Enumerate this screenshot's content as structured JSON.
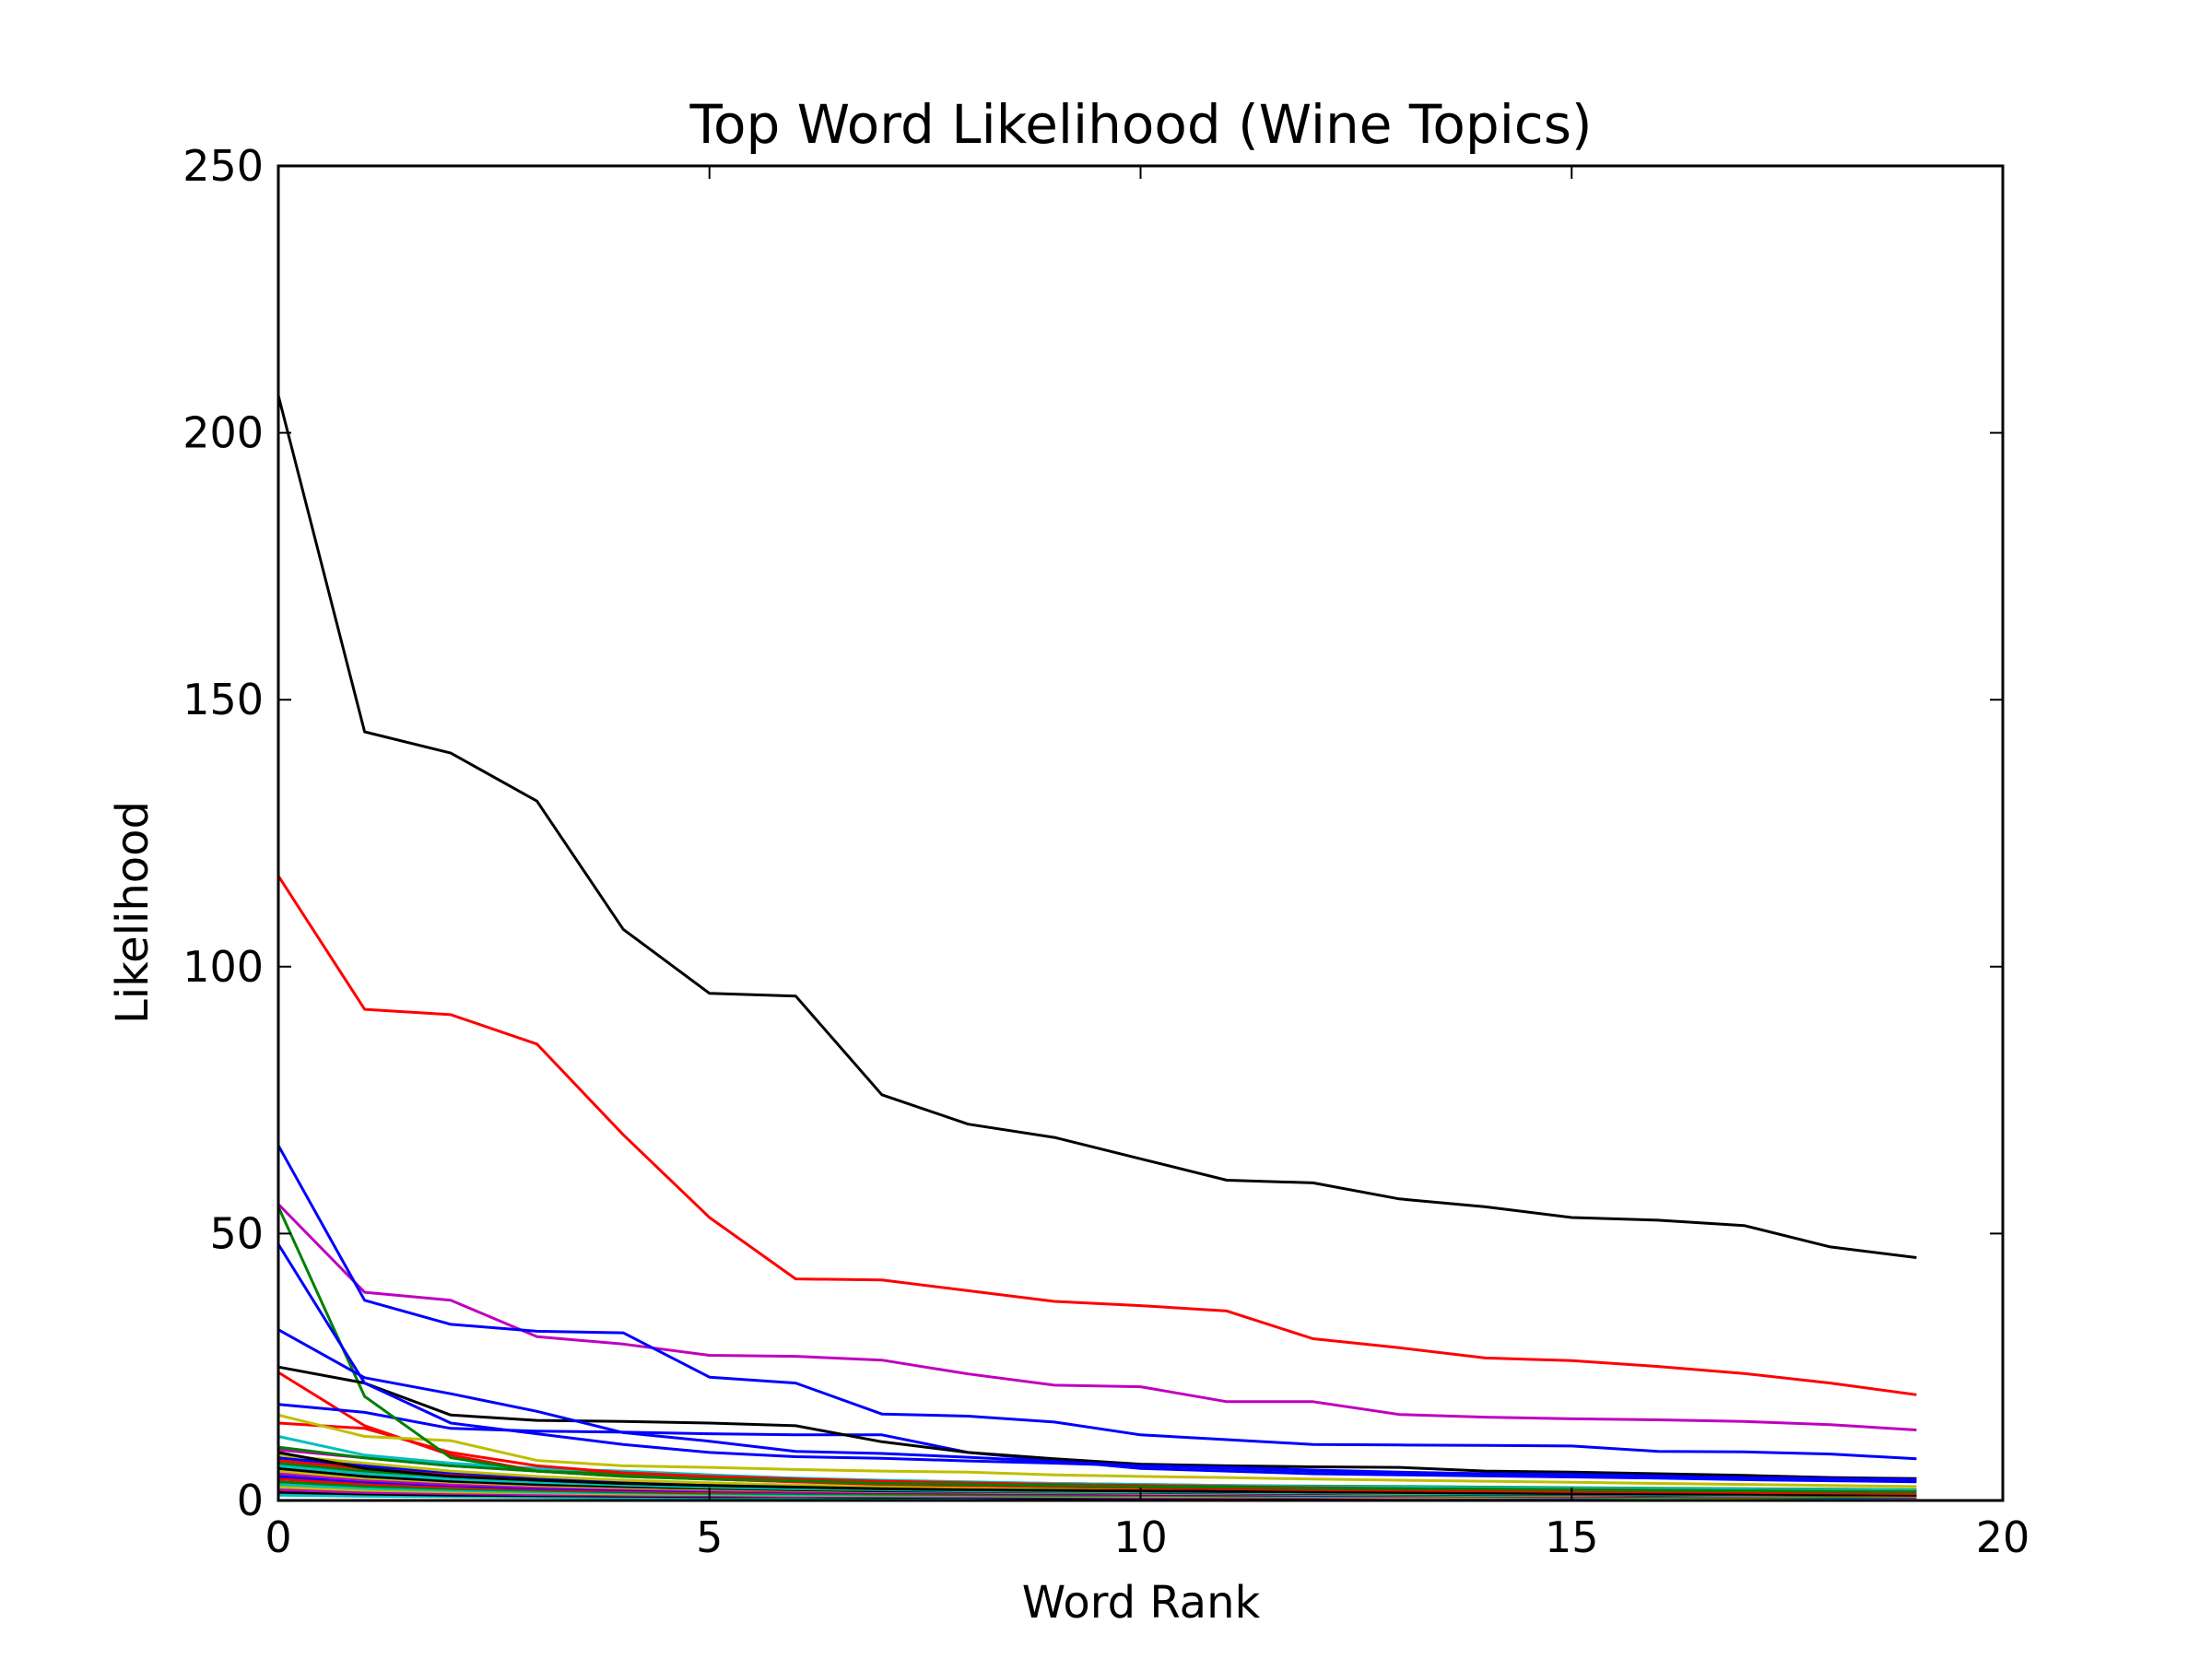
{
  "chart_data": {
    "type": "line",
    "title": "Top Word Likelihood (Wine Topics)",
    "xlabel": "Word Rank",
    "ylabel": "Likelihood",
    "xlim": [
      0,
      20
    ],
    "ylim": [
      0,
      250
    ],
    "xticks": [
      "0",
      "5",
      "10",
      "15",
      "20"
    ],
    "yticks": [
      "0",
      "50",
      "100",
      "150",
      "200",
      "250"
    ],
    "grid": false,
    "legend": "none",
    "x": [
      0,
      1,
      2,
      3,
      4,
      5,
      6,
      7,
      8,
      9,
      10,
      11,
      12,
      13,
      14,
      15,
      16,
      17,
      18,
      19
    ],
    "series": [
      {
        "color": "#000000",
        "values": [
          207,
          144,
          140,
          131,
          107,
          95,
          94.5,
          76,
          70.5,
          68,
          64,
          60,
          59.5,
          56.5,
          55,
          53,
          52.5,
          51.5,
          47.5,
          45.5
        ]
      },
      {
        "color": "#ff0000",
        "values": [
          117,
          92,
          91,
          85.5,
          68.5,
          53,
          41.5,
          41.3,
          39.3,
          37.3,
          36.5,
          35.5,
          30.3,
          28.6,
          26.7,
          26.2,
          25.1,
          23.8,
          22,
          19.8
        ]
      },
      {
        "color": "#0000ff",
        "values": [
          66.5,
          37.5,
          33,
          31.7,
          31.4,
          23.1,
          22,
          16.2,
          15.8,
          14.7,
          12.3,
          11.4,
          10.5,
          10.4,
          10.3,
          10.2,
          9.2,
          9.1,
          8.7,
          7.8
        ]
      },
      {
        "color": "#bf00bf",
        "values": [
          55.5,
          39,
          37.5,
          30.7,
          29.3,
          27.2,
          27,
          26.3,
          23.7,
          21.6,
          21.3,
          18.5,
          18.5,
          16.1,
          15.6,
          15.3,
          15.1,
          14.8,
          14.2,
          13.2
        ]
      },
      {
        "color": "#0000ff",
        "values": [
          32,
          23,
          20,
          16.7,
          12.7,
          11.1,
          9.2,
          8.8,
          8.1,
          7.3,
          6.5,
          6.2,
          5.7,
          5.3,
          5,
          4.9,
          4.6,
          4.2,
          3.9,
          3.7
        ]
      },
      {
        "color": "#0000ff",
        "values": [
          48,
          22,
          14.5,
          12.5,
          10.5,
          9,
          8.2,
          7.9,
          7.4,
          7,
          6.5,
          6,
          5.5,
          5.2,
          5,
          4.8,
          4.5,
          4.3,
          4.1,
          3.9
        ]
      },
      {
        "color": "#000000",
        "values": [
          25,
          22,
          16,
          15,
          14.8,
          14.5,
          14,
          11,
          9,
          7.8,
          6.8,
          6.5,
          6.3,
          6.2,
          5.5,
          5.3,
          5,
          4.7,
          4.3,
          4.1
        ]
      },
      {
        "color": "#008000",
        "values": [
          55,
          19.5,
          8,
          5.5,
          4.5,
          4,
          3.7,
          3.2,
          3,
          2.8,
          2.6,
          2.5,
          2.3,
          2.2,
          2.1,
          2,
          1.9,
          1.8,
          1.7,
          1.6
        ]
      },
      {
        "color": "#0000ff",
        "values": [
          18,
          16.5,
          13.5,
          13,
          12.8,
          12.5,
          12.3,
          12.3,
          9,
          7.5,
          6,
          5.5,
          5,
          4.8,
          4.6,
          4.4,
          4.2,
          3.9,
          3.7,
          3.5
        ]
      },
      {
        "color": "#bfbf00",
        "values": [
          16,
          12,
          11.2,
          7.5,
          6.5,
          6.2,
          5.8,
          5.5,
          5.3,
          4.8,
          4.5,
          4.3,
          4,
          3.8,
          3.6,
          3.4,
          3.2,
          3,
          2.8,
          2.6
        ]
      },
      {
        "color": "#ff0000",
        "values": [
          24,
          14,
          8.5,
          5.5,
          4.5,
          4,
          3.5,
          3,
          2.8,
          2.6,
          2.4,
          2.2,
          2,
          1.9,
          1.8,
          1.7,
          1.6,
          1.5,
          1.4,
          1.3
        ]
      },
      {
        "color": "#ff0000",
        "values": [
          14.5,
          13.5,
          9,
          6.5,
          5.2,
          4.5,
          4,
          3.6,
          3.3,
          3,
          2.8,
          2.6,
          2.4,
          2.2,
          2.1,
          2,
          1.9,
          1.8,
          1.7,
          1.6
        ]
      },
      {
        "color": "#00bfbf",
        "values": [
          12,
          8.5,
          7,
          6,
          5.5,
          4.8,
          4.2,
          3.8,
          3.5,
          3.2,
          3,
          2.8,
          2.6,
          2.5,
          2.4,
          2.3,
          2.2,
          2.1,
          2,
          1.9
        ]
      },
      {
        "color": "#008000",
        "values": [
          10,
          8,
          6.5,
          5.5,
          5,
          4.5,
          4,
          3.7,
          3.4,
          3.2,
          3,
          2.8,
          2.7,
          2.6,
          2.5,
          2.4,
          2.3,
          2.2,
          2.1,
          2
        ]
      },
      {
        "color": "#bf00bf",
        "values": [
          9.5,
          8,
          6.5,
          5.5,
          4.6,
          4,
          3.5,
          3.1,
          2.8,
          2.6,
          2.4,
          2.2,
          2.1,
          2,
          1.9,
          1.8,
          1.7,
          1.6,
          1.5,
          1.4
        ]
      },
      {
        "color": "#000000",
        "values": [
          9,
          6,
          4.5,
          3.8,
          3.2,
          2.8,
          2.5,
          2.2,
          2,
          1.9,
          1.8,
          1.7,
          1.6,
          1.5,
          1.4,
          1.3,
          1.2,
          1.2,
          1.1,
          1
        ]
      },
      {
        "color": "#bfbf00",
        "values": [
          8.5,
          7,
          5.5,
          4.5,
          3.8,
          3.3,
          2.9,
          2.6,
          2.4,
          2.2,
          2,
          1.9,
          1.8,
          1.7,
          1.6,
          1.5,
          1.4,
          1.3,
          1.2,
          1.1
        ]
      },
      {
        "color": "#0000ff",
        "values": [
          8,
          6.5,
          5.2,
          4.3,
          3.7,
          3.2,
          2.8,
          2.5,
          2.3,
          2.1,
          2,
          1.9,
          1.8,
          1.7,
          1.6,
          1.5,
          1.4,
          1.3,
          1.2,
          1.1
        ]
      },
      {
        "color": "#ff0000",
        "values": [
          7.5,
          6,
          4.8,
          4,
          3.4,
          3,
          2.7,
          2.4,
          2.2,
          2,
          1.9,
          1.8,
          1.7,
          1.6,
          1.5,
          1.4,
          1.3,
          1.2,
          1.1,
          1
        ]
      },
      {
        "color": "#008000",
        "values": [
          7,
          5.5,
          4.5,
          3.8,
          3.2,
          2.8,
          2.5,
          2.2,
          2,
          1.9,
          1.8,
          1.7,
          1.6,
          1.5,
          1.4,
          1.3,
          1.2,
          1.1,
          1,
          1
        ]
      },
      {
        "color": "#00bfbf",
        "values": [
          6.5,
          5,
          4,
          3.4,
          2.9,
          2.5,
          2.2,
          2,
          1.8,
          1.7,
          1.6,
          1.5,
          1.4,
          1.3,
          1.2,
          1.2,
          1.1,
          1,
          1,
          0.9
        ]
      },
      {
        "color": "#000000",
        "values": [
          6,
          4.5,
          3.6,
          3,
          2.6,
          2.3,
          2,
          1.8,
          1.7,
          1.6,
          1.5,
          1.4,
          1.3,
          1.2,
          1.1,
          1.1,
          1,
          1,
          0.9,
          0.9
        ]
      },
      {
        "color": "#bfbf00",
        "values": [
          5.5,
          4.2,
          3.4,
          2.8,
          2.4,
          2.1,
          1.9,
          1.7,
          1.6,
          1.5,
          1.4,
          1.3,
          1.2,
          1.1,
          1,
          1,
          0.9,
          0.9,
          0.8,
          0.8
        ]
      },
      {
        "color": "#bf00bf",
        "values": [
          5,
          3.8,
          3,
          2.5,
          2.2,
          1.9,
          1.7,
          1.6,
          1.5,
          1.4,
          1.3,
          1.2,
          1.1,
          1,
          1,
          0.9,
          0.9,
          0.8,
          0.8,
          0.7
        ]
      },
      {
        "color": "#0000ff",
        "values": [
          4.5,
          3.5,
          2.8,
          2.3,
          2,
          1.8,
          1.6,
          1.5,
          1.4,
          1.3,
          1.2,
          1.1,
          1,
          1,
          0.9,
          0.9,
          0.8,
          0.8,
          0.7,
          0.7
        ]
      },
      {
        "color": "#ff0000",
        "values": [
          4,
          3.1,
          2.5,
          2.1,
          1.8,
          1.6,
          1.5,
          1.4,
          1.3,
          1.2,
          1.1,
          1,
          1,
          0.9,
          0.9,
          0.8,
          0.8,
          0.7,
          0.7,
          0.6
        ]
      },
      {
        "color": "#008000",
        "values": [
          3.5,
          2.7,
          2.2,
          1.9,
          1.6,
          1.4,
          1.3,
          1.2,
          1.1,
          1,
          1,
          0.9,
          0.9,
          0.8,
          0.8,
          0.7,
          0.7,
          0.6,
          0.6,
          0.6
        ]
      },
      {
        "color": "#00bfbf",
        "values": [
          3,
          2.3,
          1.9,
          1.6,
          1.4,
          1.2,
          1.1,
          1,
          1,
          0.9,
          0.9,
          0.8,
          0.8,
          0.7,
          0.7,
          0.6,
          0.6,
          0.6,
          0.5,
          0.5
        ]
      },
      {
        "color": "#bfbf00",
        "values": [
          2.5,
          1.9,
          1.6,
          1.4,
          1.2,
          1.1,
          1,
          0.9,
          0.9,
          0.8,
          0.8,
          0.7,
          0.7,
          0.6,
          0.6,
          0.6,
          0.5,
          0.5,
          0.5,
          0.4
        ]
      },
      {
        "color": "#bf00bf",
        "values": [
          2,
          1.5,
          1.3,
          1.1,
          1,
          0.9,
          0.8,
          0.8,
          0.7,
          0.7,
          0.6,
          0.6,
          0.6,
          0.5,
          0.5,
          0.5,
          0.4,
          0.4,
          0.4,
          0.4
        ]
      },
      {
        "color": "#000000",
        "values": [
          1.5,
          1.2,
          1,
          0.9,
          0.8,
          0.7,
          0.7,
          0.6,
          0.6,
          0.5,
          0.5,
          0.5,
          0.4,
          0.4,
          0.4,
          0.4,
          0.3,
          0.3,
          0.3,
          0.3
        ]
      },
      {
        "color": "#00bfbf",
        "values": [
          1,
          0.8,
          0.7,
          0.6,
          0.5,
          0.5,
          0.4,
          0.4,
          0.4,
          0.3,
          0.3,
          0.3,
          0.3,
          0.3,
          0.2,
          0.2,
          0.2,
          0.2,
          0.2,
          0.2
        ]
      }
    ]
  }
}
